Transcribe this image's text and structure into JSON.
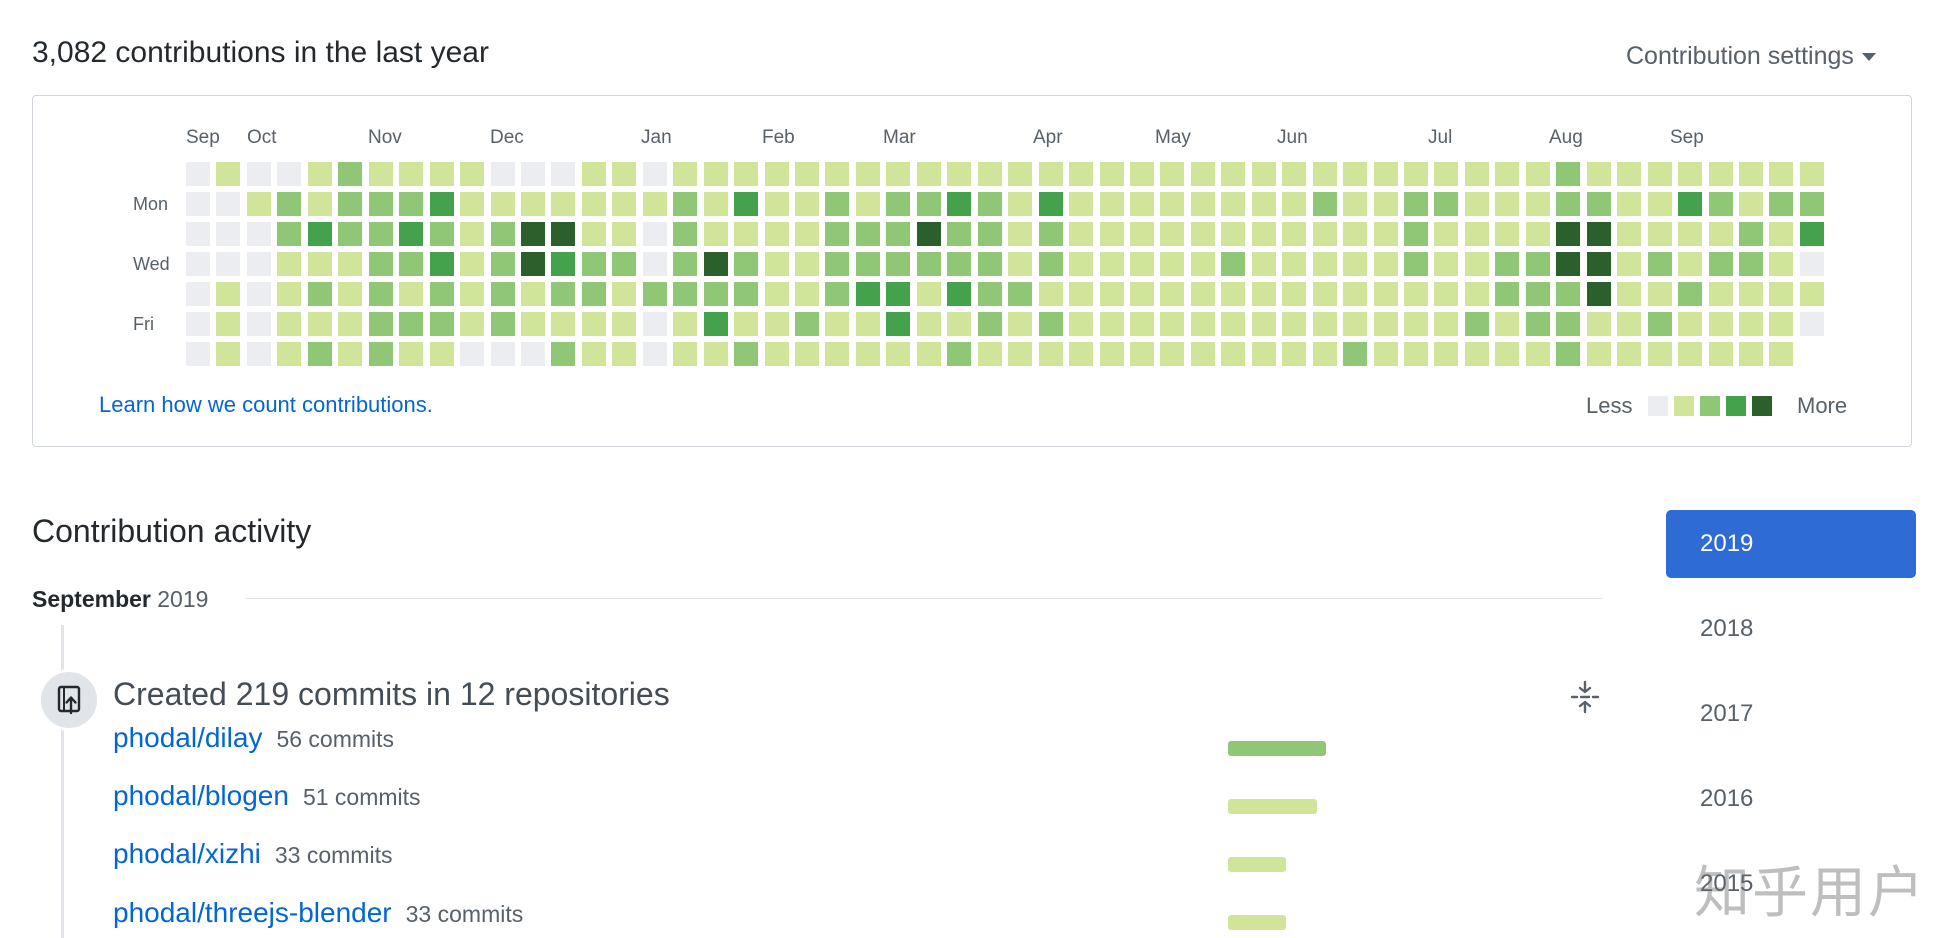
{
  "header": {
    "title": "3,082 contributions in the last year",
    "settings_label": "Contribution settings"
  },
  "calendar": {
    "months": [
      "Sep",
      "Oct",
      "Nov",
      "Dec",
      "Jan",
      "Feb",
      "Mar",
      "Apr",
      "May",
      "Jun",
      "Jul",
      "Aug",
      "Sep"
    ],
    "days": [
      "Mon",
      "Wed",
      "Fri"
    ],
    "levels": [
      "0000000",
      "1000111",
      "0100000",
      "0221111",
      "1131212",
      "2221111",
      "1222222",
      "1232121",
      "1323221",
      "1111110",
      "0122220",
      "0144110",
      "0143212",
      "1112211",
      "1112111",
      "0100200",
      "1222211",
      "1114231",
      "1312212",
      "1111111",
      "1111121",
      "1222211",
      "1122311",
      "1222331",
      "1242111",
      "1322312",
      "1222221",
      "1111211",
      "1322121",
      "1111111",
      "1111111",
      "1111111",
      "1111111",
      "1111111",
      "1112111",
      "1111111",
      "1111111",
      "1211111",
      "1111112",
      "1111111",
      "1222111",
      "1211111",
      "1111121",
      "1112211",
      "1112221",
      "2244222",
      "1244411",
      "1111111",
      "1112121",
      "1311211",
      "1212111",
      "1122111",
      "1211111",
      "123010"
    ],
    "palette": [
      "#ebedf0",
      "#d1e59a",
      "#8fc776",
      "#44a14c",
      "#2b5f2c"
    ],
    "learn_link": "Learn how we count contributions.",
    "legend_less": "Less",
    "legend_more": "More"
  },
  "activity": {
    "title": "Contribution activity",
    "month": "September",
    "year": "2019",
    "summary": "Created 219 commits in 12 repositories",
    "repos": [
      {
        "name": "phodal/dilay",
        "commits": "56 commits",
        "bar_level": 2,
        "share": 1.0
      },
      {
        "name": "phodal/blogen",
        "commits": "51 commits",
        "bar_level": 1,
        "share": 0.91
      },
      {
        "name": "phodal/xizhi",
        "commits": "33 commits",
        "bar_level": 1,
        "share": 0.59
      },
      {
        "name": "phodal/threejs-blender",
        "commits": "33 commits",
        "bar_level": 1,
        "share": 0.59
      }
    ]
  },
  "years": [
    "2019",
    "2018",
    "2017",
    "2016",
    "2015"
  ],
  "watermark": "知乎用户",
  "icons": {
    "commit_badge": "repo-push-icon",
    "collapse": "fold-icon",
    "settings_caret": "caret-down-icon"
  }
}
